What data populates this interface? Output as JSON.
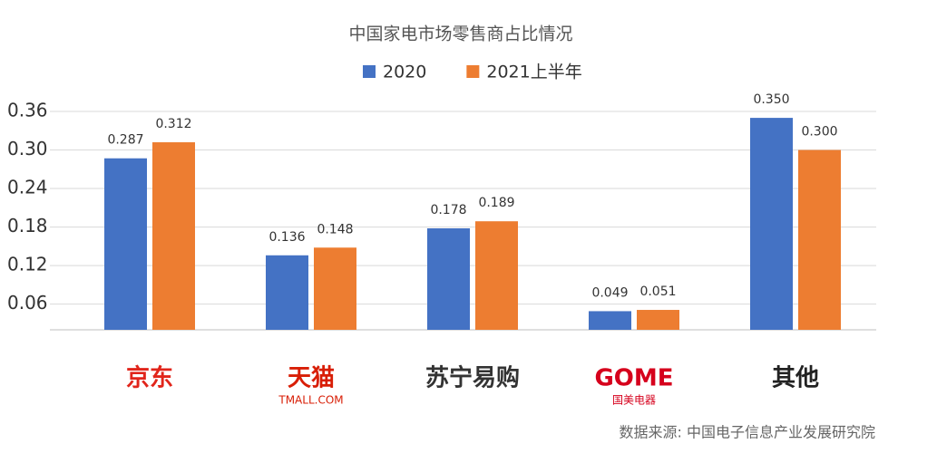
{
  "chart_data": {
    "type": "bar",
    "title": "中国家电市场零售商占比情况",
    "categories": [
      "京东",
      "天猫",
      "苏宁易购",
      "GOME",
      "其他"
    ],
    "category_notes": [
      null,
      "TMALL.COM",
      null,
      "国美电器",
      null
    ],
    "series": [
      {
        "name": "2020",
        "color": "#4472c4",
        "values": [
          0.287,
          0.136,
          0.178,
          0.049,
          0.35
        ],
        "value_labels": [
          "0.287",
          "0.136",
          "0.178",
          "0.049",
          "0.350"
        ]
      },
      {
        "name": "2021上半年",
        "color": "#ed7d31",
        "values": [
          0.312,
          0.148,
          0.189,
          0.051,
          0.3
        ],
        "value_labels": [
          "0.312",
          "0.148",
          "0.189",
          "0.051",
          "0.300"
        ]
      }
    ],
    "ylim": [
      0.02,
      0.36
    ],
    "yticks": [
      0.06,
      0.12,
      0.18,
      0.24,
      {
        "value": 0.3,
        "label": "0.30"
      },
      0.36
    ],
    "grid": true,
    "legend": "top",
    "source": "数据来源:  中国电子信息产业发展研究院"
  }
}
